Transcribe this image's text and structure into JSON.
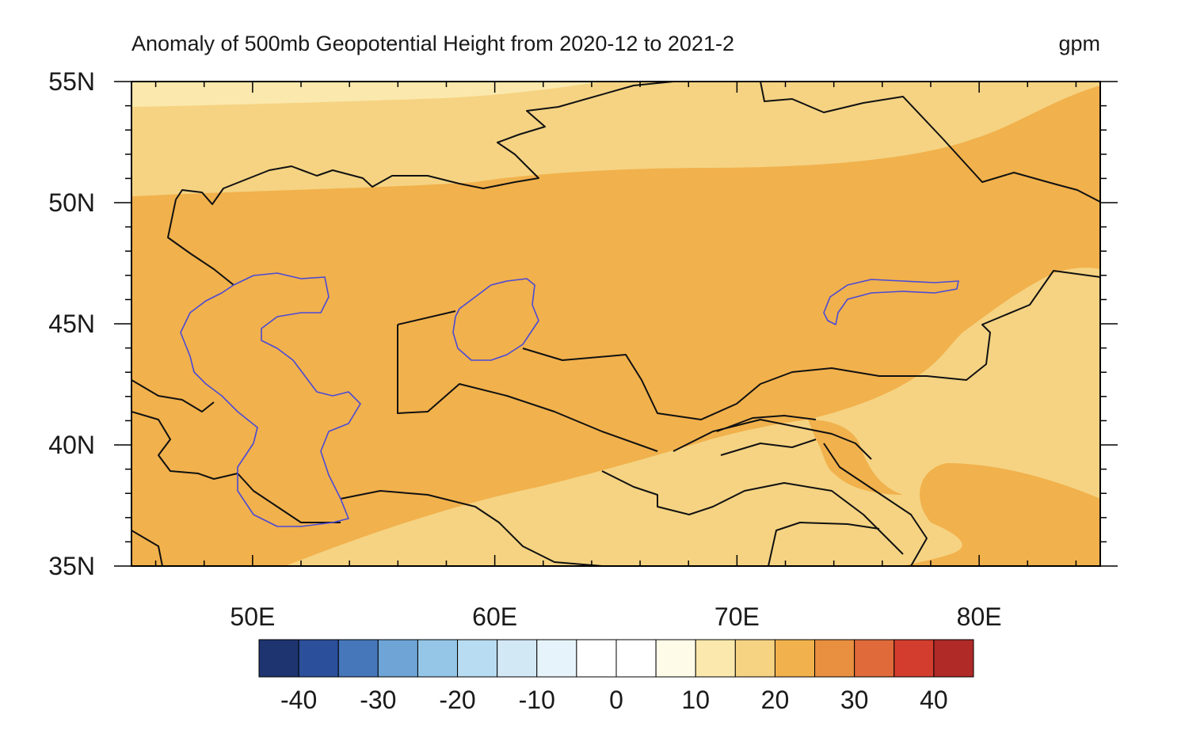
{
  "title": "Anomaly of 500mb Geopotential Height from 2020-12 to 2021-2",
  "units": "gpm",
  "map": {
    "lon_range": [
      45,
      85
    ],
    "lat_range": [
      35,
      55
    ],
    "lat_ticks": [
      {
        "value": 35,
        "label": "35N"
      },
      {
        "value": 40,
        "label": "40N"
      },
      {
        "value": 45,
        "label": "45N"
      },
      {
        "value": 50,
        "label": "50N"
      },
      {
        "value": 55,
        "label": "55N"
      }
    ],
    "lon_ticks": [
      {
        "value": 50,
        "label": "50E"
      },
      {
        "value": 60,
        "label": "60E"
      },
      {
        "value": 70,
        "label": "70E"
      },
      {
        "value": 80,
        "label": "80E"
      }
    ],
    "field_colors": {
      "band_10_15": "#fbe8ac",
      "band_15_20": "#f5d382",
      "band_20_25": "#f1b14c"
    }
  },
  "colorbar": {
    "colors": [
      "#1e3470",
      "#2b4f9b",
      "#4677bb",
      "#6ea4d6",
      "#95c6e8",
      "#b8dcf1",
      "#d3e8f5",
      "#e7f3fa",
      "#ffffff",
      "#ffffff",
      "#fffbe9",
      "#fbe8ac",
      "#f5d382",
      "#f1b14c",
      "#e98f40",
      "#e06a3a",
      "#d33d2e",
      "#b02a28"
    ],
    "labels": [
      {
        "value": -40,
        "label": "-40"
      },
      {
        "value": -30,
        "label": "-30"
      },
      {
        "value": -20,
        "label": "-20"
      },
      {
        "value": -10,
        "label": "-10"
      },
      {
        "value": 0,
        "label": "0"
      },
      {
        "value": 10,
        "label": "10"
      },
      {
        "value": 20,
        "label": "20"
      },
      {
        "value": 30,
        "label": "30"
      },
      {
        "value": 40,
        "label": "40"
      }
    ]
  }
}
